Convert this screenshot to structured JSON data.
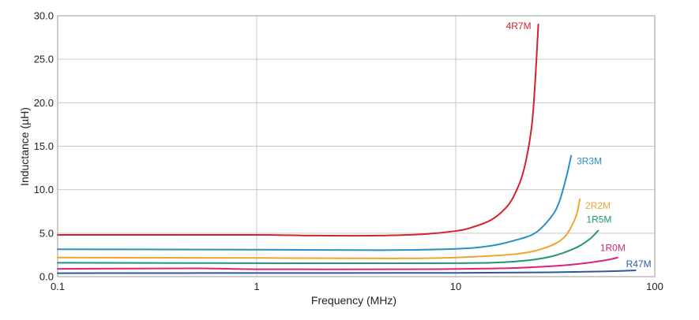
{
  "chart_data": {
    "type": "line",
    "title": "",
    "xlabel": "Frequency (MHz)",
    "ylabel": "Inductance (µH)",
    "xscale": "log",
    "xlim": [
      0.1,
      100
    ],
    "ylim": [
      0,
      30
    ],
    "grid": true,
    "legend": "inline labels at curve ends",
    "x_ticks": [
      "0.1",
      "1",
      "10",
      "100"
    ],
    "y_ticks": [
      "0.0",
      "5.0",
      "10.0",
      "15.0",
      "20.0",
      "25.0",
      "30.0"
    ],
    "series": [
      {
        "name": "4R7M",
        "color": "#d5202e",
        "x": [
          0.1,
          0.3,
          1,
          2,
          4,
          7,
          10,
          12,
          15,
          18,
          20,
          22,
          24,
          25,
          26
        ],
        "y": [
          4.8,
          4.8,
          4.8,
          4.72,
          4.72,
          4.9,
          5.25,
          5.65,
          6.5,
          8.0,
          9.7,
          12.3,
          17.0,
          22.0,
          29.0
        ]
      },
      {
        "name": "3R3M",
        "color": "#2a8fc9",
        "x": [
          0.1,
          1,
          4,
          10,
          15,
          20,
          25,
          30,
          33,
          36,
          38
        ],
        "y": [
          3.15,
          3.1,
          3.05,
          3.2,
          3.55,
          4.2,
          5.0,
          6.8,
          8.5,
          11.5,
          13.9
        ]
      },
      {
        "name": "2R2M",
        "color": "#eda532",
        "x": [
          0.1,
          1,
          5,
          10,
          20,
          28,
          35,
          40,
          42
        ],
        "y": [
          2.2,
          2.15,
          2.1,
          2.2,
          2.6,
          3.3,
          4.5,
          6.8,
          8.9
        ]
      },
      {
        "name": "1R5M",
        "color": "#22957c",
        "x": [
          0.1,
          1,
          10,
          20,
          30,
          40,
          47,
          52
        ],
        "y": [
          1.6,
          1.55,
          1.55,
          1.75,
          2.3,
          3.3,
          4.3,
          5.3
        ]
      },
      {
        "name": "1R0M",
        "color": "#d8247a",
        "x": [
          0.1,
          0.5,
          1,
          5,
          10,
          20,
          35,
          50,
          60,
          65
        ],
        "y": [
          0.9,
          0.95,
          0.85,
          0.85,
          0.88,
          1.0,
          1.3,
          1.7,
          2.0,
          2.2
        ]
      },
      {
        "name": "R47M",
        "color": "#2c5a9e",
        "x": [
          0.1,
          1,
          10,
          30,
          60,
          80
        ],
        "y": [
          0.4,
          0.42,
          0.43,
          0.5,
          0.62,
          0.72
        ]
      }
    ]
  }
}
